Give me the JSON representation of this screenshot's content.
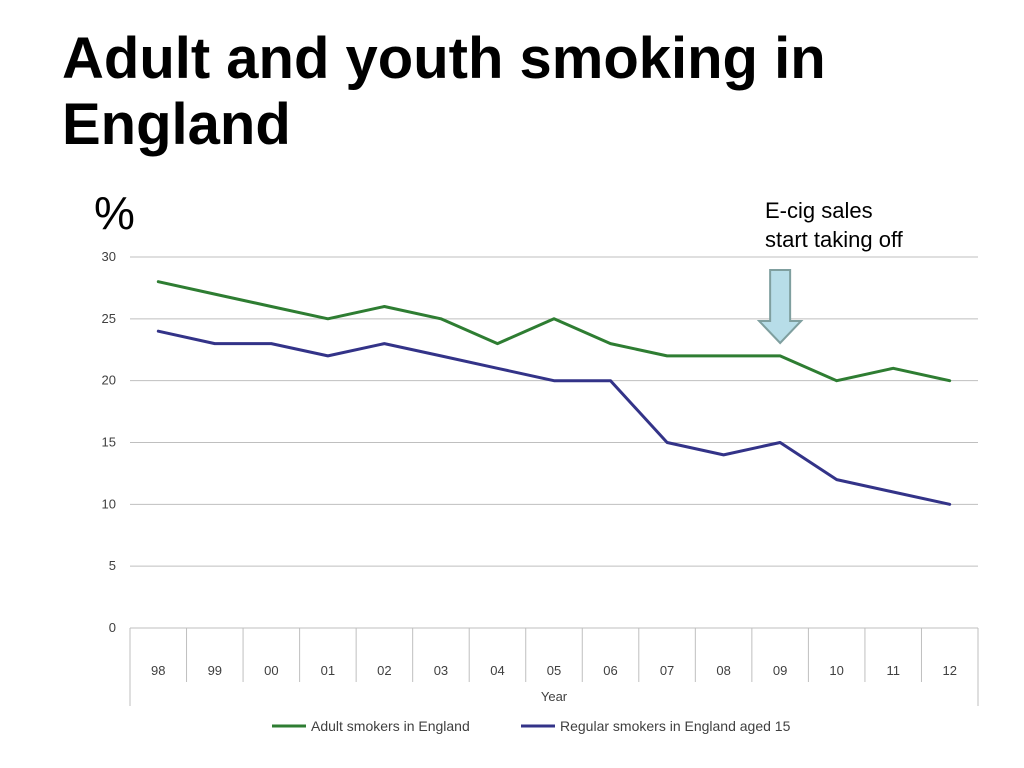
{
  "slide": {
    "title": "Adult and youth smoking in England",
    "unit_label": "%",
    "annotation_line1": "E-cig sales",
    "annotation_line2": "start taking off",
    "annotation_category": "09"
  },
  "chart_data": {
    "type": "line",
    "title": "",
    "xlabel": "Year",
    "ylabel": "%",
    "ylim": [
      0,
      30
    ],
    "yticks": [
      0,
      5,
      10,
      15,
      20,
      25,
      30
    ],
    "grid": true,
    "legend_position": "bottom",
    "categories": [
      "98",
      "99",
      "00",
      "01",
      "02",
      "03",
      "04",
      "05",
      "06",
      "07",
      "08",
      "09",
      "10",
      "11",
      "12"
    ],
    "series": [
      {
        "name": "Adult smokers in England",
        "color": "#2e7d32",
        "values": [
          28,
          27,
          26,
          25,
          26,
          25,
          23,
          25,
          23,
          22,
          22,
          22,
          20,
          21,
          20
        ]
      },
      {
        "name": "Regular smokers in England aged 15",
        "color": "#333388",
        "values": [
          24,
          23,
          23,
          22,
          23,
          22,
          21,
          20,
          20,
          15,
          14,
          15,
          12,
          11,
          10
        ]
      }
    ],
    "colors": {
      "grid": "#bfbfbf",
      "axis_text": "#404040",
      "arrow_fill": "#b7dde8",
      "arrow_stroke": "#7f9f9f"
    }
  }
}
